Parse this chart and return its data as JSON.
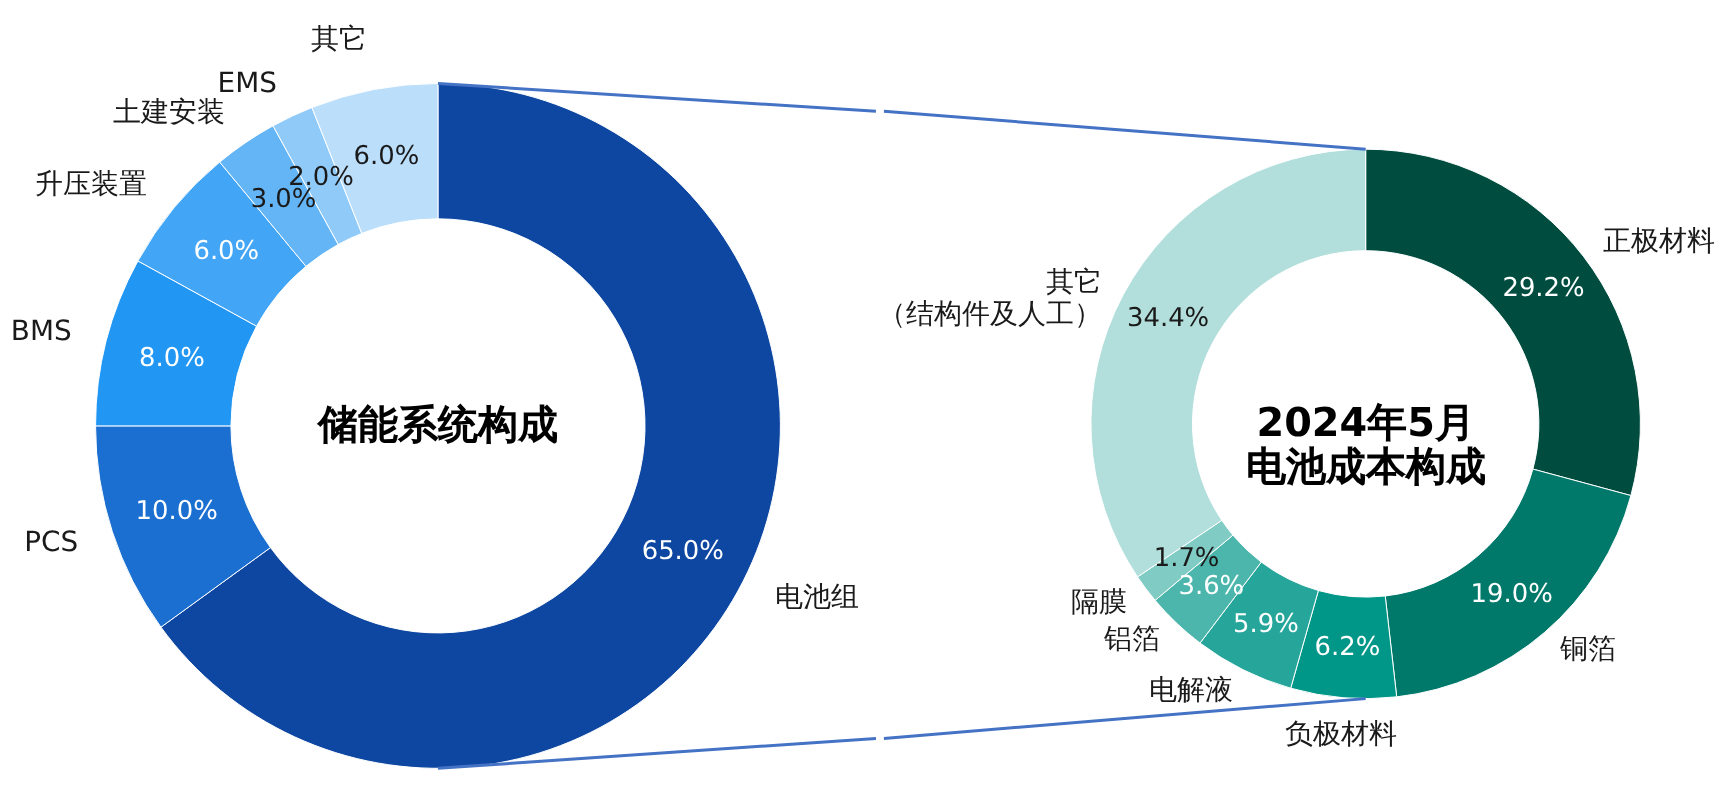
{
  "chart_data": [
    {
      "type": "donut",
      "title": "储能系统构成",
      "categories": [
        "电池组",
        "PCS",
        "BMS",
        "升压装置",
        "土建安装",
        "EMS",
        "其它"
      ],
      "values": [
        65.0,
        10.0,
        8.0,
        6.0,
        3.0,
        2.0,
        6.0
      ],
      "colors": [
        "#0e47a1",
        "#1a6fd0",
        "#2196f3",
        "#42a5f5",
        "#64b5f6",
        "#90caf9",
        "#bbdefb"
      ],
      "value_labels": [
        "65.0%",
        "10.0%",
        "8.0%",
        "6.0%",
        "3.0%",
        "2.0%",
        "6.0%"
      ]
    },
    {
      "type": "donut",
      "title": "2024年5月电池成本构成",
      "categories": [
        "正极材料",
        "铜箔",
        "负极材料",
        "电解液",
        "铝箔",
        "隔膜",
        "其它（结构件及人工）"
      ],
      "values": [
        29.2,
        19.0,
        6.2,
        5.9,
        3.6,
        1.7,
        34.4
      ],
      "colors": [
        "#004d40",
        "#00796b",
        "#009688",
        "#26a69a",
        "#4db6ac",
        "#80cbc4",
        "#b2dfdb"
      ],
      "value_labels": [
        "29.2%",
        "19.0%",
        "6.2%",
        "5.9%",
        "3.6%",
        "1.7%",
        "34.4%"
      ]
    }
  ]
}
